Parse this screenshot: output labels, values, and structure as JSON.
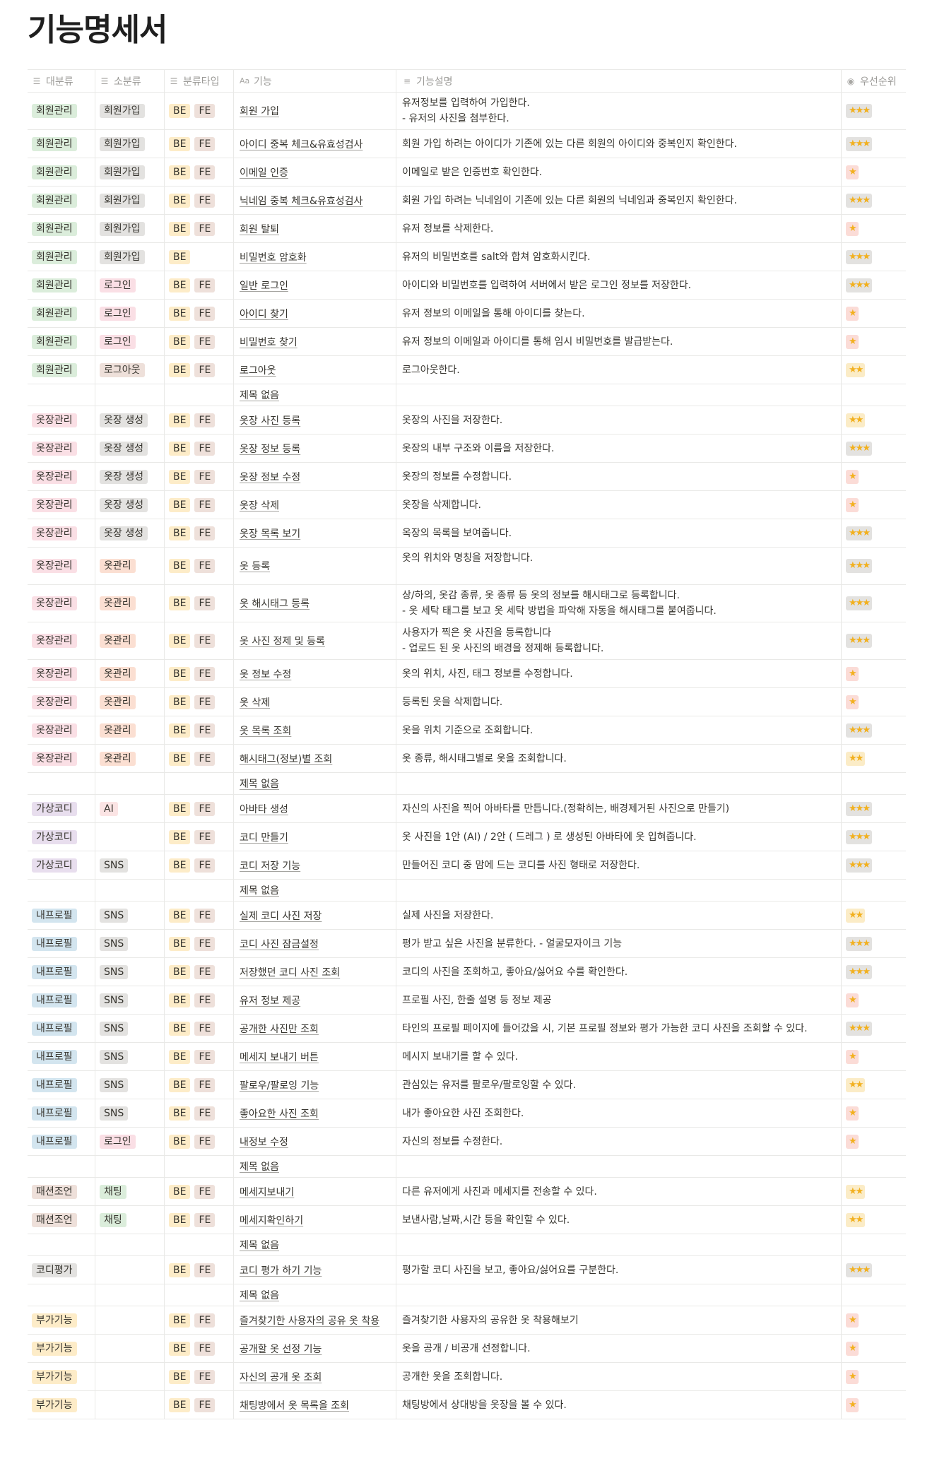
{
  "title": "기능명세서",
  "columns": [
    {
      "label": "대분류",
      "icon": "list-icon"
    },
    {
      "label": "소분류",
      "icon": "list-icon"
    },
    {
      "label": "분류타입",
      "icon": "list-icon"
    },
    {
      "label": "기능",
      "icon": "title-icon"
    },
    {
      "label": "기능설명",
      "icon": "text-icon"
    },
    {
      "label": "우선순위",
      "icon": "select-icon"
    }
  ],
  "tag_colors": {
    "회원관리": "#dbeddb",
    "옷장관리": "#fadfe5",
    "가상코디": "#e8deee",
    "내프로필": "#d3e5ef",
    "패션조언": "#eee0da",
    "코디평가": "#e3e2e0",
    "부가기능": "#fdecc8",
    "회원가입": "#e3e2e0",
    "로그인": "#fadfe5",
    "로그아웃": "#eee0da",
    "옷장 생성": "#e3e2e0",
    "옷관리": "#fbdfd2",
    "AI": "#fbe4e4",
    "SNS": "#e3e2e0",
    "채팅": "#dbeddb",
    "BE": "#fdecc8",
    "FE": "#eee0da"
  },
  "rows": [
    {
      "cat": "회원관리",
      "sub": "회원가입",
      "types": [
        "BE",
        "FE"
      ],
      "name": "회원 가입",
      "desc": "유저정보를 입력하여 가입한다.\n- 유저의 사진을 첨부한다.",
      "priority": 3
    },
    {
      "cat": "회원관리",
      "sub": "회원가입",
      "types": [
        "BE",
        "FE"
      ],
      "name": "아이디 중복 체크&유효성검사",
      "desc": "회원 가입 하려는 아이디가 기존에 있는 다른 회원의 아이디와 중복인지 확인한다.",
      "priority": 3
    },
    {
      "cat": "회원관리",
      "sub": "회원가입",
      "types": [
        "BE",
        "FE"
      ],
      "name": "이메일 인증",
      "desc": "이메일로 받은 인증번호 확인한다.",
      "priority": 1
    },
    {
      "cat": "회원관리",
      "sub": "회원가입",
      "types": [
        "BE",
        "FE"
      ],
      "name": "닉네임 중복 체크&유효성검사",
      "desc": "회원 가입 하려는 닉네임이 기존에 있는 다른 회원의 닉네임과 중복인지 확인한다.",
      "priority": 3
    },
    {
      "cat": "회원관리",
      "sub": "회원가입",
      "types": [
        "BE",
        "FE"
      ],
      "name": "회원 탈퇴",
      "desc": "유저 정보를 삭제한다.",
      "priority": 1
    },
    {
      "cat": "회원관리",
      "sub": "회원가입",
      "types": [
        "BE"
      ],
      "name": "비밀번호 암호화",
      "desc": "유저의 비밀번호를 salt와 합쳐 암호화시킨다.",
      "priority": 3
    },
    {
      "cat": "회원관리",
      "sub": "로그인",
      "types": [
        "BE",
        "FE"
      ],
      "name": "일반 로그인",
      "desc": "아이디와 비밀번호를 입력하여 서버에서 받은 로그인 정보를 저장한다.",
      "priority": 3
    },
    {
      "cat": "회원관리",
      "sub": "로그인",
      "types": [
        "BE",
        "FE"
      ],
      "name": "아이디 찾기",
      "desc": "유저 정보의 이메일을 통해 아이디를 찾는다.",
      "priority": 1
    },
    {
      "cat": "회원관리",
      "sub": "로그인",
      "types": [
        "BE",
        "FE"
      ],
      "name": "비밀번호 찾기",
      "desc": "유저 정보의 이메일과 아이디를 통해 임시 비밀번호를 발급받는다.",
      "priority": 1
    },
    {
      "cat": "회원관리",
      "sub": "로그아웃",
      "types": [
        "BE",
        "FE"
      ],
      "name": "로그아웃",
      "desc": "로그아웃한다.",
      "priority": 2
    },
    {
      "cat": "",
      "sub": "",
      "types": [],
      "name": "제목 없음",
      "desc": "",
      "priority": 0
    },
    {
      "cat": "옷장관리",
      "sub": "옷장 생성",
      "types": [
        "BE",
        "FE"
      ],
      "name": "옷장 사진 등록",
      "desc": "옷장의 사진을 저장한다.",
      "priority": 2
    },
    {
      "cat": "옷장관리",
      "sub": "옷장 생성",
      "types": [
        "BE",
        "FE"
      ],
      "name": "옷장 정보 등록",
      "desc": "옷장의 내부 구조와 이름을 저장한다.",
      "priority": 3
    },
    {
      "cat": "옷장관리",
      "sub": "옷장 생성",
      "types": [
        "BE",
        "FE"
      ],
      "name": "옷장 정보 수정",
      "desc": "옷장의 정보를 수정합니다.",
      "priority": 1
    },
    {
      "cat": "옷장관리",
      "sub": "옷장 생성",
      "types": [
        "BE",
        "FE"
      ],
      "name": "옷장 삭제",
      "desc": "옷장을 삭제합니다.",
      "priority": 1
    },
    {
      "cat": "옷장관리",
      "sub": "옷장 생성",
      "types": [
        "BE",
        "FE"
      ],
      "name": "옷장 목록 보기",
      "desc": "옥장의 목록을 보여줍니다.",
      "priority": 3
    },
    {
      "cat": "옷장관리",
      "sub": "옷관리",
      "types": [
        "BE",
        "FE"
      ],
      "name": "옷 등록",
      "desc": "옷의 위치와 명칭을 저장합니다.\n ",
      "priority": 3
    },
    {
      "cat": "옷장관리",
      "sub": "옷관리",
      "types": [
        "BE",
        "FE"
      ],
      "name": "옷 해시태그 등록",
      "desc": "상/하의, 옷감 종류, 옷 종류 등 옷의 정보를 해시태그로 등록합니다.\n- 옷 세탁 태그를 보고 옷 세탁 방법을 파악해 자동을 해시태그를 붙여줍니다.",
      "priority": 3
    },
    {
      "cat": "옷장관리",
      "sub": "옷관리",
      "types": [
        "BE",
        "FE"
      ],
      "name": "옷 사진 정제 및 등록",
      "desc": "사용자가 찍은 옷 사진을 등록합니다\n- 업로드 된 옷 사진의 배경을 정제해 등록합니다.",
      "priority": 3
    },
    {
      "cat": "옷장관리",
      "sub": "옷관리",
      "types": [
        "BE",
        "FE"
      ],
      "name": "옷 정보 수정",
      "desc": "옷의 위치, 사진, 태그 정보를 수정합니다.",
      "priority": 1
    },
    {
      "cat": "옷장관리",
      "sub": "옷관리",
      "types": [
        "BE",
        "FE"
      ],
      "name": "옷 삭제",
      "desc": "등록된 옷을 삭제합니다.",
      "priority": 1
    },
    {
      "cat": "옷장관리",
      "sub": "옷관리",
      "types": [
        "BE",
        "FE"
      ],
      "name": "옷 목록 조회",
      "desc": "옷을 위치 기준으로 조회합니다.",
      "priority": 3
    },
    {
      "cat": "옷장관리",
      "sub": "옷관리",
      "types": [
        "BE",
        "FE"
      ],
      "name": "해시태그(정보)별 조회",
      "desc": "옷 종류, 해시태그별로 옷을 조회합니다.",
      "priority": 2
    },
    {
      "cat": "",
      "sub": "",
      "types": [],
      "name": "제목 없음",
      "desc": "",
      "priority": 0
    },
    {
      "cat": "가상코디",
      "sub": "AI",
      "types": [
        "BE",
        "FE"
      ],
      "name": "아바타 생성",
      "desc": "자신의 사진을 찍어 아바타를 만듭니다.(정확히는, 배경제거된 사진으로 만들기)",
      "priority": 3
    },
    {
      "cat": "가상코디",
      "sub": "",
      "types": [
        "BE",
        "FE"
      ],
      "name": "코디 만들기",
      "desc": "옷 사진을 1안 (AI) / 2안 ( 드레그 ) 로 생성된 아바타에 옷 입혀줍니다.",
      "priority": 3
    },
    {
      "cat": "가상코디",
      "sub": "SNS",
      "types": [
        "BE",
        "FE"
      ],
      "name": "코디 저장 기능",
      "desc": "만들어진 코디 중 맘에 드는 코디를 사진 형태로 저장한다.",
      "priority": 3
    },
    {
      "cat": "",
      "sub": "",
      "types": [],
      "name": "제목 없음",
      "desc": "",
      "priority": 0
    },
    {
      "cat": "내프로필",
      "sub": "SNS",
      "types": [
        "BE",
        "FE"
      ],
      "name": "실제 코디 사진 저장",
      "desc": "실제 사진을 저장한다.",
      "priority": 2
    },
    {
      "cat": "내프로필",
      "sub": "SNS",
      "types": [
        "BE",
        "FE"
      ],
      "name": "코디 사진 잠금설정",
      "desc": "평가 받고 싶은 사진을 분류한다. - 얼굴모자이크 기능",
      "priority": 3
    },
    {
      "cat": "내프로필",
      "sub": "SNS",
      "types": [
        "BE",
        "FE"
      ],
      "name": "저장했던 코디 사진 조회",
      "desc": "코디의 사진을 조회하고, 좋아요/싫어요 수를 확인한다.",
      "priority": 3
    },
    {
      "cat": "내프로필",
      "sub": "SNS",
      "types": [
        "BE",
        "FE"
      ],
      "name": "유저 정보 제공",
      "desc": "프로필 사진, 한줄 설명 등 정보 제공",
      "priority": 1
    },
    {
      "cat": "내프로필",
      "sub": "SNS",
      "types": [
        "BE",
        "FE"
      ],
      "name": "공개한 사진만 조회",
      "desc": "타인의 프로필 페이지에 들어갔을 시, 기본 프로필 정보와 평가 가능한 코디 사진을 조회할 수 있다.",
      "priority": 3
    },
    {
      "cat": "내프로필",
      "sub": "SNS",
      "types": [
        "BE",
        "FE"
      ],
      "name": "메세지 보내기 버튼",
      "desc": "메시지 보내기를 할 수 있다.",
      "priority": 1
    },
    {
      "cat": "내프로필",
      "sub": "SNS",
      "types": [
        "BE",
        "FE"
      ],
      "name": "팔로우/팔로잉 기능",
      "desc": "관심있는 유저를 팔로우/팔로잉할 수 있다.",
      "priority": 2
    },
    {
      "cat": "내프로필",
      "sub": "SNS",
      "types": [
        "BE",
        "FE"
      ],
      "name": "좋아요한 사진 조회",
      "desc": "내가 좋아요한 사진 조회한다.",
      "priority": 1
    },
    {
      "cat": "내프로필",
      "sub": "로그인",
      "types": [
        "BE",
        "FE"
      ],
      "name": "내정보 수정",
      "desc": "자신의 정보를 수정한다.",
      "priority": 1
    },
    {
      "cat": "",
      "sub": "",
      "types": [],
      "name": "제목 없음",
      "desc": "",
      "priority": 0
    },
    {
      "cat": "패션조언",
      "sub": "채팅",
      "types": [
        "BE",
        "FE"
      ],
      "name": "메세지보내기",
      "desc": "다른 유저에게 사진과 메세지를 전송할 수 있다.",
      "priority": 2
    },
    {
      "cat": "패션조언",
      "sub": "채팅",
      "types": [
        "BE",
        "FE"
      ],
      "name": "메세지확인하기",
      "desc": "보낸사람,날짜,시간 등을 확인할 수 있다.",
      "priority": 2
    },
    {
      "cat": "",
      "sub": "",
      "types": [],
      "name": "제목 없음",
      "desc": "",
      "priority": 0
    },
    {
      "cat": "코디평가",
      "sub": "",
      "types": [
        "BE",
        "FE"
      ],
      "name": "코디 평가 하기 기능",
      "desc": "평가할 코디 사진을 보고, 좋아요/싫어요를 구분한다.",
      "priority": 3
    },
    {
      "cat": "",
      "sub": "",
      "types": [],
      "name": "제목 없음",
      "desc": "",
      "priority": 0
    },
    {
      "cat": "부가기능",
      "sub": "",
      "types": [
        "BE",
        "FE"
      ],
      "name": "즐겨찾기한 사용자의 공유 옷 착용",
      "desc": "즐겨찾기한 사용자의 공유한 옷 착용해보기",
      "priority": 1
    },
    {
      "cat": "부가기능",
      "sub": "",
      "types": [
        "BE",
        "FE"
      ],
      "name": "공개할 옷 선정 기능",
      "desc": "옷을 공개 / 비공개 선정합니다.",
      "priority": 1
    },
    {
      "cat": "부가기능",
      "sub": "",
      "types": [
        "BE",
        "FE"
      ],
      "name": "자신의 공개 옷 조회",
      "desc": "공개한 옷을 조회합니다.",
      "priority": 1
    },
    {
      "cat": "부가기능",
      "sub": "",
      "types": [
        "BE",
        "FE"
      ],
      "name": "채팅방에서 옷 목록을 조회",
      "desc": "채팅방에서 상대방을 옷장을 볼 수 있다.",
      "priority": 1
    }
  ]
}
